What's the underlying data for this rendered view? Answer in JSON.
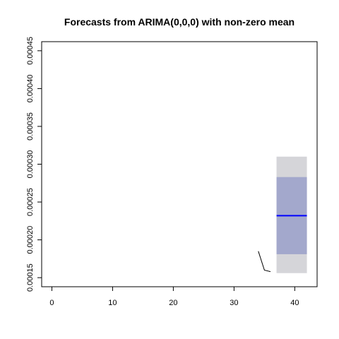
{
  "chart_data": {
    "type": "line",
    "title": "Forecasts from ARIMA(0,0,0) with non-zero mean",
    "xlabel": "",
    "ylabel": "",
    "xlim": [
      0,
      42
    ],
    "ylim": [
      0.00015,
      0.00045
    ],
    "x_ticks": [
      0,
      10,
      20,
      30,
      40
    ],
    "x_tick_labels": [
      "0",
      "10",
      "20",
      "30",
      "40"
    ],
    "y_ticks": [
      0.00015,
      0.0002,
      0.00025,
      0.0003,
      0.00035,
      0.0004,
      0.00045
    ],
    "y_tick_labels": [
      "0.00015",
      "0.00020",
      "0.00025",
      "0.00030",
      "0.00035",
      "0.00040",
      "0.00045"
    ],
    "grid": false,
    "observed": {
      "x": [
        34,
        35,
        36
      ],
      "y": [
        0.000185,
        0.00016,
        0.000158
      ]
    },
    "forecast": {
      "x": [
        37,
        42
      ],
      "mean": 0.000232,
      "lo80": 0.000181,
      "hi80": 0.000283,
      "lo95": 0.000156,
      "hi95": 0.00031
    },
    "colors": {
      "observed": "#000000",
      "mean": "#0000ff",
      "band80": "#a3a8cc",
      "band95": "#d5d5d9"
    }
  }
}
